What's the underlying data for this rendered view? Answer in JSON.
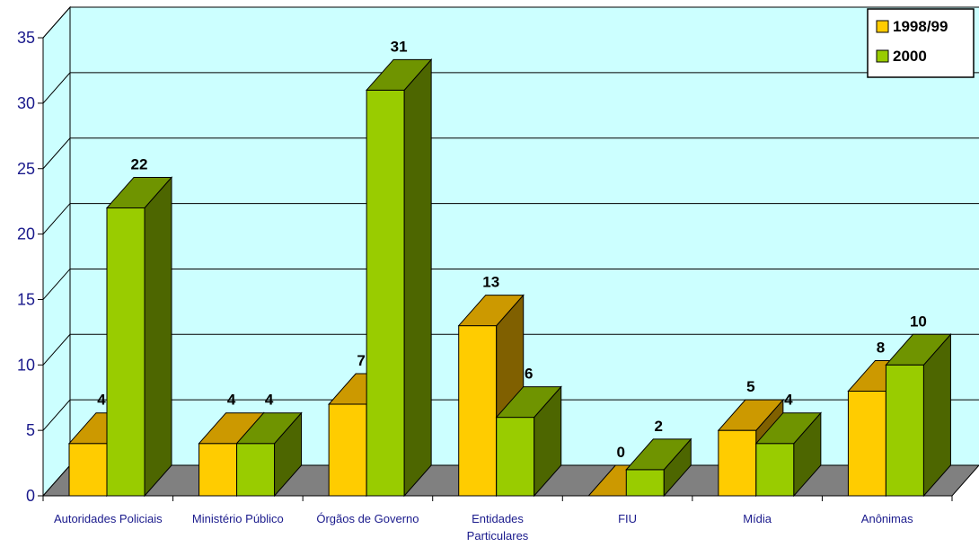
{
  "chart_data": {
    "type": "bar",
    "title": "",
    "xlabel": "",
    "ylabel": "",
    "ylim": [
      0,
      35
    ],
    "yticks": [
      "0",
      "5",
      "10",
      "15",
      "20",
      "25",
      "30",
      "35"
    ],
    "grid": true,
    "legend_position": "top-right",
    "categories": [
      [
        "Autoridades Policiais"
      ],
      [
        "Ministério Público"
      ],
      [
        "Órgãos de Governo"
      ],
      [
        "Entidades",
        "Particulares"
      ],
      [
        "FIU"
      ],
      [
        "Mídia"
      ],
      [
        "Anônimas"
      ]
    ],
    "series": [
      {
        "name": "1998/99",
        "values": [
          4,
          4,
          7,
          13,
          0,
          5,
          8
        ],
        "labels": [
          "4",
          "4",
          "7",
          "13",
          "0",
          "5",
          "8"
        ]
      },
      {
        "name": "2000",
        "values": [
          22,
          4,
          31,
          6,
          2,
          4,
          10
        ],
        "labels": [
          "22",
          "4",
          "31",
          "6",
          "2",
          "4",
          "10"
        ]
      }
    ]
  },
  "colors": {
    "wall": "#ccffff",
    "floor": "#808080",
    "series_1998_front": "#ffcc00",
    "series_1998_top": "#cc9900",
    "series_1998_side": "#806000",
    "series_2000_front": "#99cc00",
    "series_2000_top": "#6f9400",
    "series_2000_side": "#4d6600",
    "axis_text": "#1a1a8c"
  }
}
